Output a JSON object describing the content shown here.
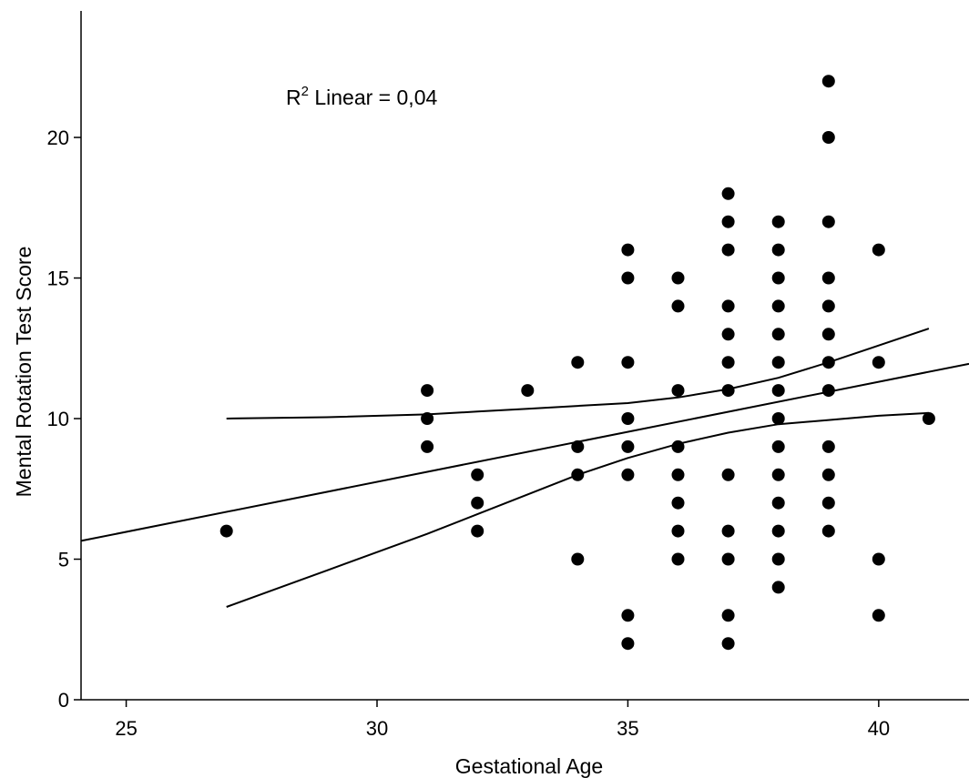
{
  "chart_data": {
    "type": "scatter",
    "xlabel": "Gestational Age",
    "ylabel": "Mental Rotation Test Score",
    "xlim": [
      24.1,
      41.8
    ],
    "ylim": [
      0,
      24.5
    ],
    "xticks": [
      25,
      30,
      35,
      40
    ],
    "yticks": [
      0,
      5,
      10,
      15,
      20
    ],
    "grid": false,
    "annotation": {
      "prefix": "R",
      "sup": "2",
      "text": " Linear = 0,04"
    },
    "points": [
      [
        27,
        6
      ],
      [
        31,
        11
      ],
      [
        31,
        10
      ],
      [
        31,
        9
      ],
      [
        32,
        8
      ],
      [
        32,
        7
      ],
      [
        32,
        6
      ],
      [
        33,
        11
      ],
      [
        34,
        12
      ],
      [
        34,
        9
      ],
      [
        34,
        8
      ],
      [
        34,
        5
      ],
      [
        35,
        16
      ],
      [
        35,
        15
      ],
      [
        35,
        12
      ],
      [
        35,
        10
      ],
      [
        35,
        9
      ],
      [
        35,
        8
      ],
      [
        35,
        3
      ],
      [
        35,
        2
      ],
      [
        36,
        15
      ],
      [
        36,
        14
      ],
      [
        36,
        11
      ],
      [
        36,
        9
      ],
      [
        36,
        8
      ],
      [
        36,
        7
      ],
      [
        36,
        6
      ],
      [
        36,
        5
      ],
      [
        37,
        18
      ],
      [
        37,
        17
      ],
      [
        37,
        16
      ],
      [
        37,
        14
      ],
      [
        37,
        13
      ],
      [
        37,
        12
      ],
      [
        37,
        11
      ],
      [
        37,
        8
      ],
      [
        37,
        6
      ],
      [
        37,
        5
      ],
      [
        37,
        3
      ],
      [
        37,
        2
      ],
      [
        38,
        17
      ],
      [
        38,
        16
      ],
      [
        38,
        15
      ],
      [
        38,
        14
      ],
      [
        38,
        13
      ],
      [
        38,
        12
      ],
      [
        38,
        11
      ],
      [
        38,
        10
      ],
      [
        38,
        9
      ],
      [
        38,
        8
      ],
      [
        38,
        7
      ],
      [
        38,
        6
      ],
      [
        38,
        5
      ],
      [
        38,
        4
      ],
      [
        39,
        22
      ],
      [
        39,
        20
      ],
      [
        39,
        17
      ],
      [
        39,
        15
      ],
      [
        39,
        14
      ],
      [
        39,
        13
      ],
      [
        39,
        12
      ],
      [
        39,
        11
      ],
      [
        39,
        9
      ],
      [
        39,
        8
      ],
      [
        39,
        7
      ],
      [
        39,
        6
      ],
      [
        40,
        16
      ],
      [
        40,
        12
      ],
      [
        40,
        5
      ],
      [
        40,
        3
      ],
      [
        41,
        10
      ]
    ],
    "fit_line": {
      "x": [
        24.1,
        41.8
      ],
      "y": [
        5.65,
        11.95
      ]
    },
    "ci_lower": {
      "x": [
        27,
        29,
        31,
        32,
        33,
        34,
        35,
        36,
        37,
        38,
        39,
        40,
        41
      ],
      "y": [
        3.3,
        4.6,
        5.9,
        6.6,
        7.3,
        8.0,
        8.6,
        9.1,
        9.5,
        9.8,
        9.95,
        10.1,
        10.2
      ]
    },
    "ci_upper": {
      "x": [
        27,
        29,
        31,
        32,
        33,
        34,
        35,
        36,
        37,
        38,
        39,
        40,
        41
      ],
      "y": [
        10.0,
        10.05,
        10.15,
        10.25,
        10.35,
        10.45,
        10.55,
        10.75,
        11.05,
        11.45,
        12.0,
        12.6,
        13.2
      ]
    }
  }
}
